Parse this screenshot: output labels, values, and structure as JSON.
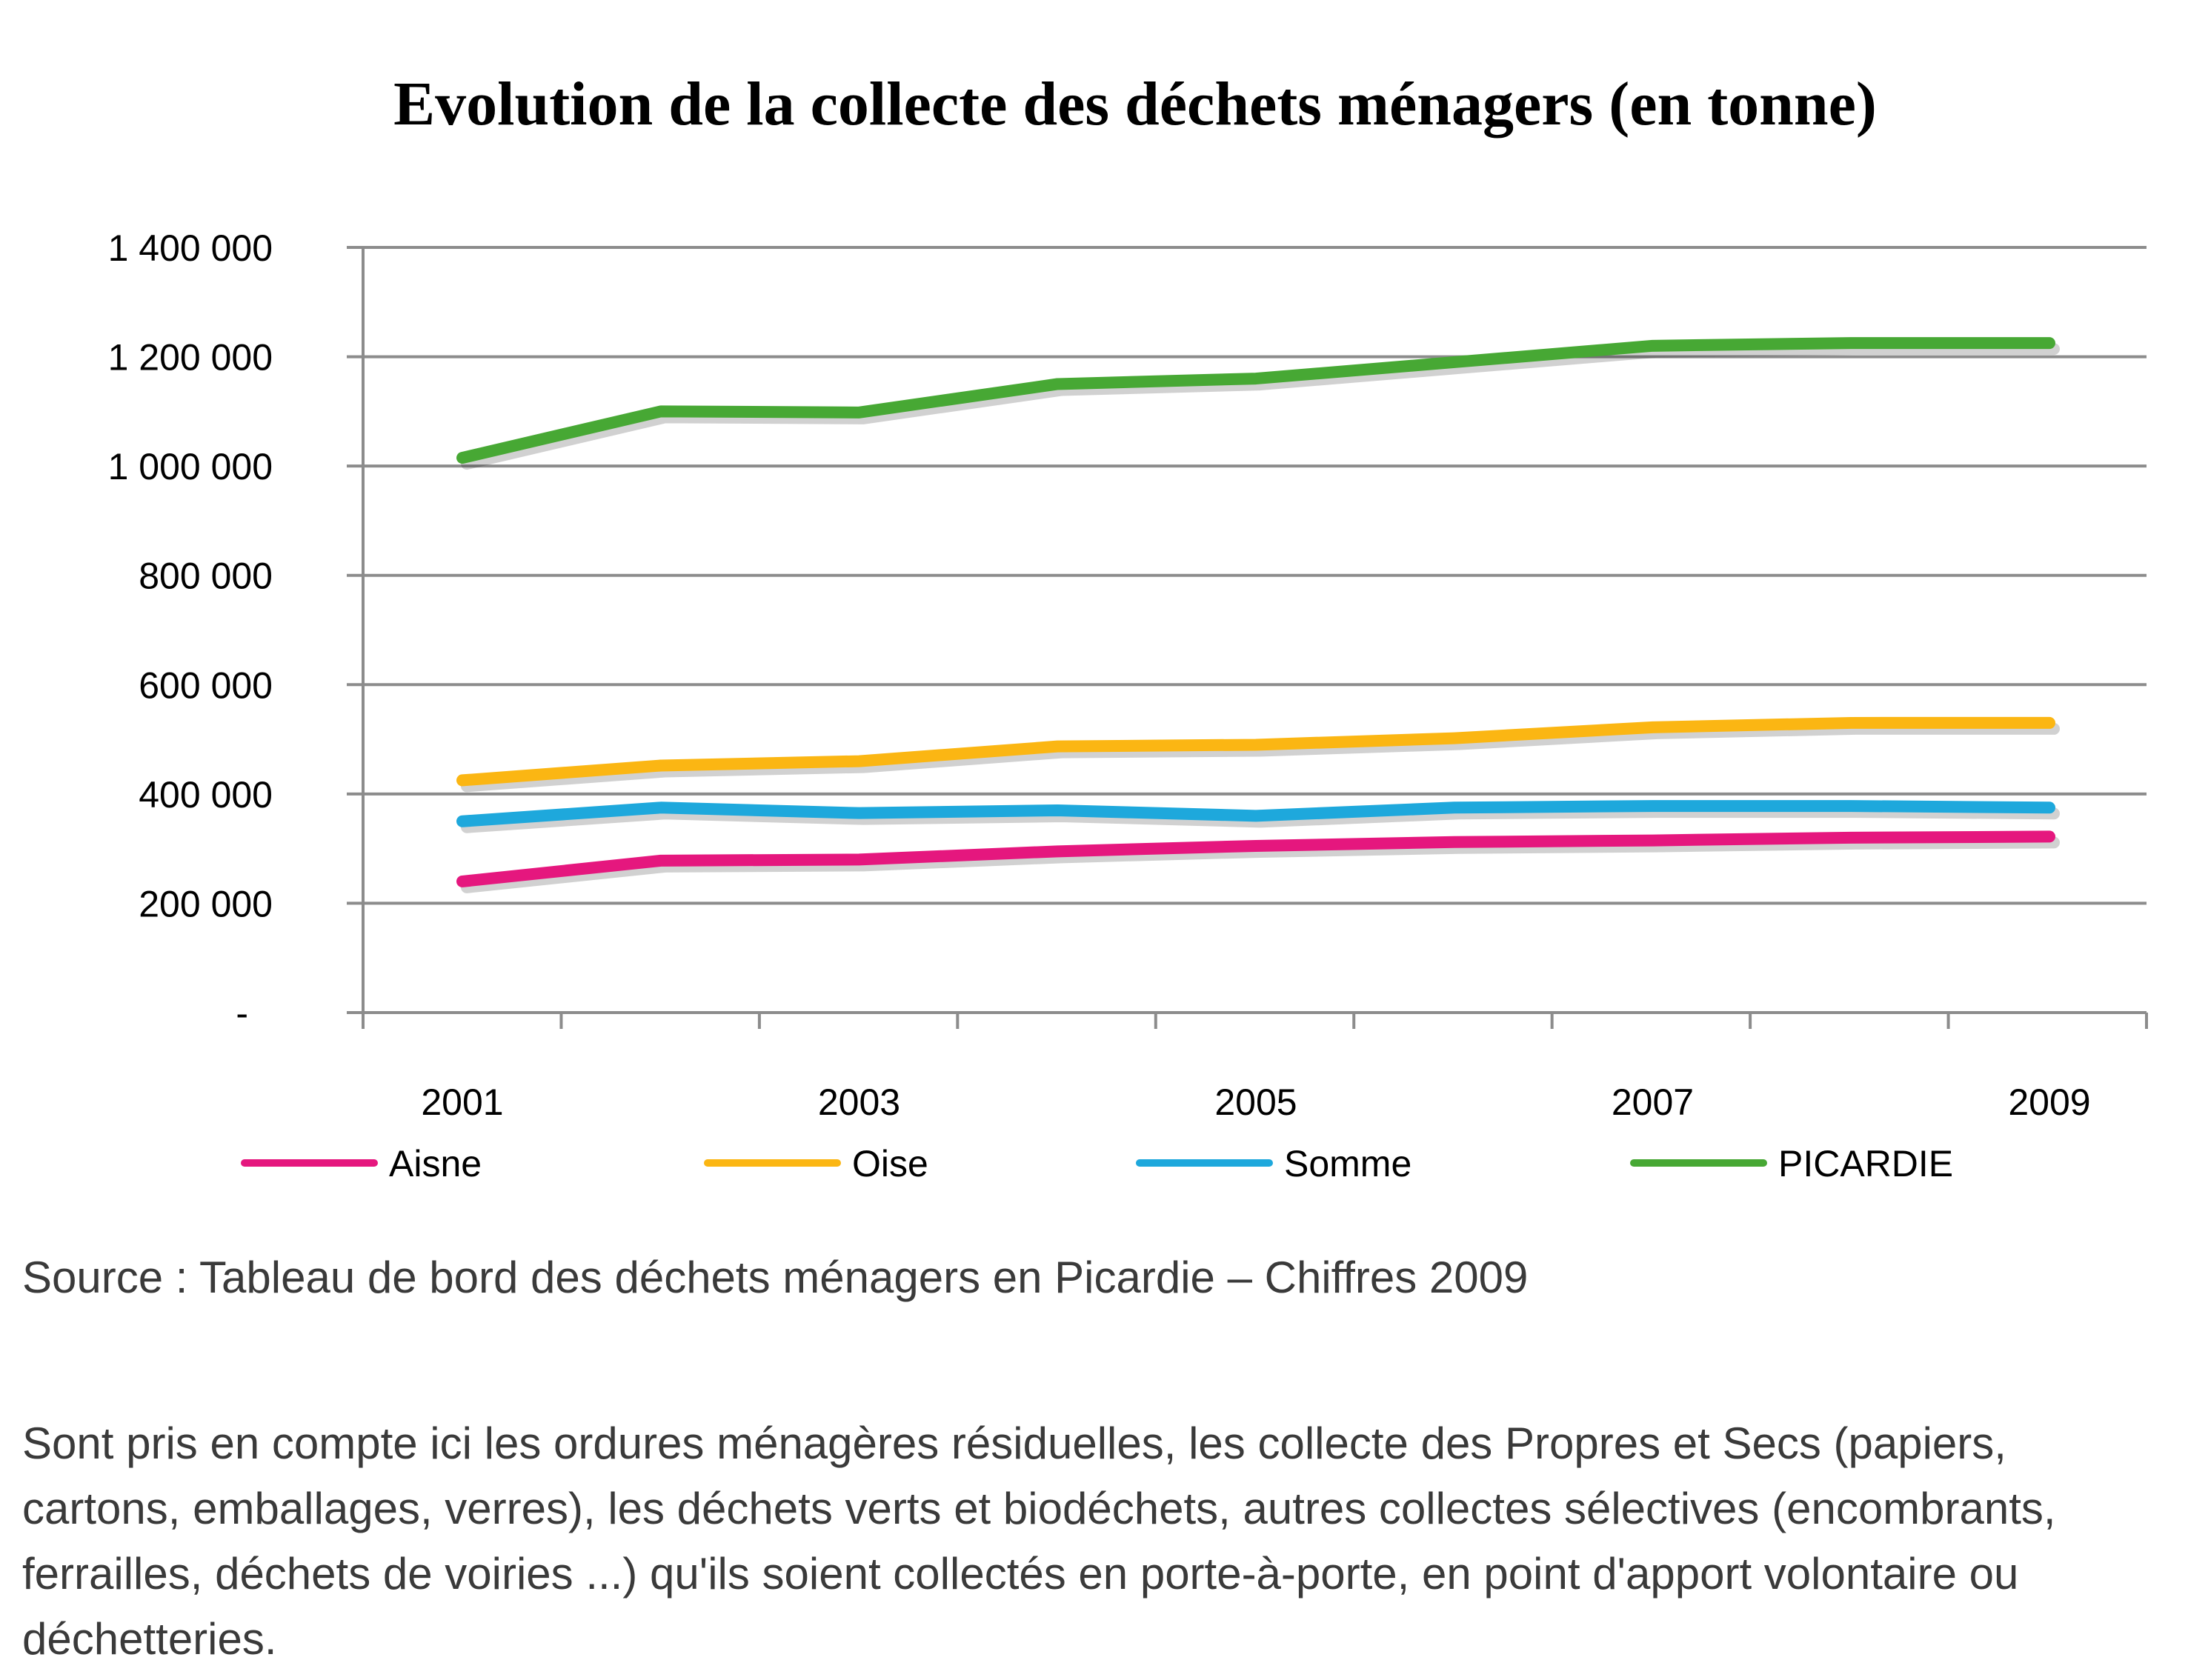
{
  "chart_data": {
    "type": "line",
    "title": "Evolution de la collecte des déchets ménagers (en tonne)",
    "x": [
      2001,
      2002,
      2003,
      2004,
      2005,
      2006,
      2007,
      2008,
      2009
    ],
    "x_tick_labels": [
      "2001",
      "2003",
      "2005",
      "2007",
      "2009"
    ],
    "y_tick_labels": [
      "-",
      "200 000",
      "400 000",
      "600 000",
      "800 000",
      "1 000 000",
      "1 200 000",
      "1 400 000"
    ],
    "ylim": [
      0,
      1400000
    ],
    "grid": true,
    "legend_position": "bottom",
    "series": [
      {
        "name": "Aisne",
        "color": "#e5177e",
        "values": [
          240000,
          278000,
          280000,
          295000,
          305000,
          312000,
          315000,
          320000,
          322000
        ]
      },
      {
        "name": "Oise",
        "color": "#fbb613",
        "values": [
          425000,
          452000,
          460000,
          487000,
          490000,
          502000,
          522000,
          530000,
          530000
        ]
      },
      {
        "name": "Somme",
        "color": "#1ea8dc",
        "values": [
          350000,
          375000,
          365000,
          370000,
          360000,
          375000,
          378000,
          378000,
          375000
        ]
      },
      {
        "name": "PICARDIE",
        "color": "#47a834",
        "values": [
          1015000,
          1100000,
          1098000,
          1150000,
          1160000,
          1190000,
          1220000,
          1225000,
          1225000
        ]
      }
    ]
  },
  "source_text": "Source : Tableau de bord des déchets ménagers en Picardie – Chiffres 2009",
  "note_text": "Sont pris en compte ici les ordures ménagères résiduelles, les collecte des Propres et Secs (papiers, cartons, emballages, verres), les déchets verts et biodéchets, autres collectes sélectives (encombrants, ferrailles, déchets de voiries ...) qu'ils soient collectés en porte-à-porte, en point d'apport volontaire ou déchetteries."
}
